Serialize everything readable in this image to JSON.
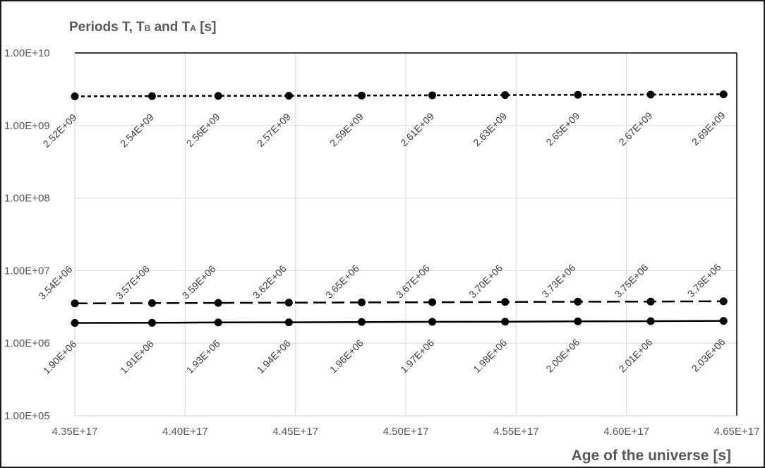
{
  "chart_data": {
    "type": "line",
    "title": "Periods  T, T",
    "title_sub1": "B",
    "title_mid": " and T",
    "title_sub2": "A",
    "title_end": " [s]",
    "xlabel": "Age of the universe [s]",
    "ylabel": "",
    "y_scale": "log",
    "ylim": [
      100000,
      10000000000
    ],
    "xlim": [
      4.35e+17,
      4.65e+17
    ],
    "grid": true,
    "legend": "none",
    "x_tick_labels": [
      "4.35E+17",
      "4.40E+17",
      "4.45E+17",
      "4.50E+17",
      "4.55E+17",
      "4.60E+17",
      "4.65E+17"
    ],
    "x_ticks": [
      4.35e+17,
      4.4e+17,
      4.45e+17,
      4.5e+17,
      4.55e+17,
      4.6e+17,
      4.65e+17
    ],
    "y_tick_labels": [
      "1.00E+05",
      "1.00E+06",
      "1.00E+07",
      "1.00E+08",
      "1.00E+09",
      "1.00E+10"
    ],
    "y_ticks": [
      100000,
      1000000,
      10000000,
      100000000,
      1000000000,
      10000000000
    ],
    "x": [
      4.35e+17,
      4.385e+17,
      4.415e+17,
      4.447e+17,
      4.48e+17,
      4.512e+17,
      4.545e+17,
      4.578e+17,
      4.611e+17,
      4.644e+17
    ],
    "series": [
      {
        "style": "dotted",
        "label_position": "below",
        "values": [
          2520000000,
          2540000000,
          2560000000,
          2570000000,
          2590000000,
          2610000000,
          2630000000,
          2650000000,
          2670000000,
          2690000000
        ],
        "labels": [
          "2.52E+09",
          "2.54E+09",
          "2.56E+09",
          "2.57E+09",
          "2.59E+09",
          "2.61E+09",
          "2.63E+09",
          "2.65E+09",
          "2.67E+09",
          "2.69E+09"
        ]
      },
      {
        "style": "dashed",
        "label_position": "above",
        "values": [
          3540000,
          3570000,
          3590000,
          3620000,
          3650000,
          3670000,
          3700000,
          3730000,
          3750000,
          3780000
        ],
        "labels": [
          "3.54E+06",
          "3.57E+06",
          "3.59E+06",
          "3.62E+06",
          "3.65E+06",
          "3.67E+06",
          "3.70E+06",
          "3.73E+06",
          "3.75E+06",
          "3.78E+06"
        ]
      },
      {
        "style": "solid",
        "label_position": "below",
        "values": [
          1900000,
          1910000,
          1930000,
          1940000,
          1960000,
          1970000,
          1980000,
          2000000,
          2010000,
          2030000
        ],
        "labels": [
          "1.90E+06",
          "1.91E+06",
          "1.93E+06",
          "1.94E+06",
          "1.96E+06",
          "1.97E+06",
          "1.98E+06",
          "2.00E+06",
          "2.01E+06",
          "2.03E+06"
        ]
      }
    ]
  }
}
